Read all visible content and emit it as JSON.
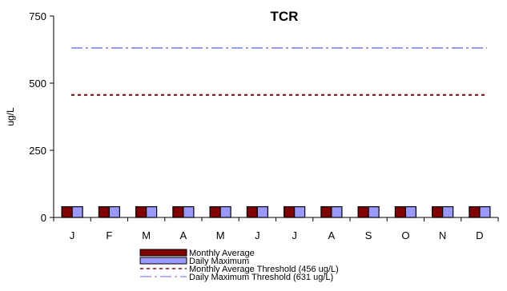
{
  "chart_data": {
    "type": "bar",
    "title": "TCR",
    "ylabel": "ug/L",
    "xlabel": "",
    "ylim": [
      0,
      750
    ],
    "yticks": [
      0,
      250,
      500,
      750
    ],
    "categories": [
      "J",
      "F",
      "M",
      "A",
      "M",
      "J",
      "J",
      "A",
      "S",
      "O",
      "N",
      "D"
    ],
    "series": [
      {
        "name": "Monthly Average",
        "color": "#800000",
        "values": [
          40,
          40,
          40,
          40,
          40,
          40,
          40,
          40,
          40,
          40,
          40,
          40
        ]
      },
      {
        "name": "Daily Maximum",
        "color": "#9999ff",
        "values": [
          40,
          40,
          40,
          40,
          40,
          40,
          40,
          40,
          40,
          40,
          40,
          40
        ]
      }
    ],
    "thresholds": [
      {
        "name": "Monthly Average Threshold (456 ug/L)",
        "value": 456,
        "color": "#800000",
        "style": "dotted"
      },
      {
        "name": "Daily Maximum Threshold (631 ug/L)",
        "value": 631,
        "color": "#9999ff",
        "style": "dash-dot"
      }
    ],
    "grid": false,
    "legend_position": "bottom"
  }
}
